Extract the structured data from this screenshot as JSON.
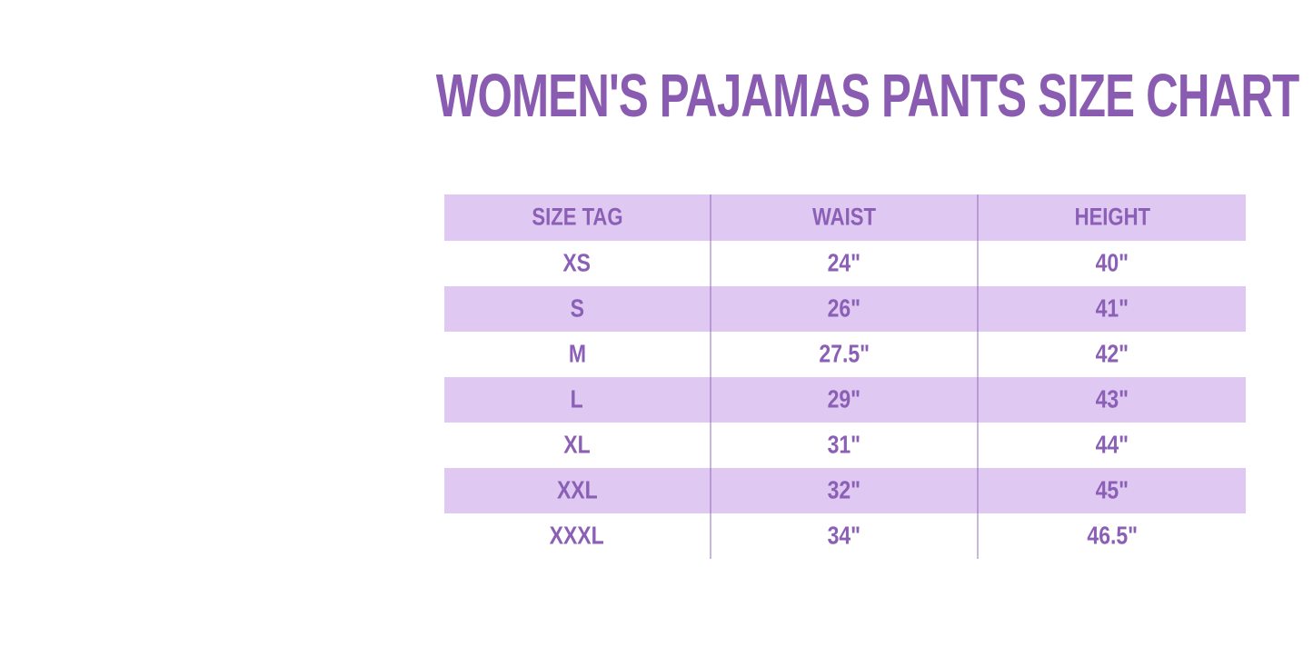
{
  "page": {
    "background": "#ffffff"
  },
  "title": {
    "text": "WOMEN'S PAJAMAS PANTS SIZE CHART",
    "color": "#8a5cb1"
  },
  "table": {
    "headers": [
      "SIZE TAG",
      "WAIST",
      "HEIGHT"
    ],
    "rows": [
      {
        "size": "XS",
        "waist": "24\"",
        "height": "40\""
      },
      {
        "size": "S",
        "waist": "26\"",
        "height": "41\""
      },
      {
        "size": "M",
        "waist": "27.5\"",
        "height": "42\""
      },
      {
        "size": "L",
        "waist": "29\"",
        "height": "43\""
      },
      {
        "size": "XL",
        "waist": "31\"",
        "height": "44\""
      },
      {
        "size": "XXL",
        "waist": "32\"",
        "height": "45\""
      },
      {
        "size": "XXXL",
        "waist": "34\"",
        "height": "46.5\""
      }
    ],
    "colors": {
      "header_bg": "#dfc8f1",
      "stripe_bg": "#dfc8f1",
      "alt_row_bg": "#ffffff",
      "cell_text": "#8a5fb5",
      "divider": "#a983cc"
    }
  },
  "chart_data": {
    "type": "table",
    "title": "WOMEN'S PAJAMAS PANTS SIZE CHART",
    "columns": [
      "SIZE TAG",
      "WAIST",
      "HEIGHT"
    ],
    "rows": [
      [
        "XS",
        "24\"",
        "40\""
      ],
      [
        "S",
        "26\"",
        "41\""
      ],
      [
        "M",
        "27.5\"",
        "42\""
      ],
      [
        "L",
        "29\"",
        "43\""
      ],
      [
        "XL",
        "31\"",
        "44\""
      ],
      [
        "XXL",
        "32\"",
        "45\""
      ],
      [
        "XXXL",
        "34\"",
        "46.5\""
      ]
    ],
    "waist_inches": [
      24,
      26,
      27.5,
      29,
      31,
      32,
      34
    ],
    "height_inches": [
      40,
      41,
      42,
      43,
      44,
      45,
      46.5
    ],
    "layout_hints": {
      "striped_rows": "header and rows S, L, XXL are lavender; others white",
      "column_widths": "equal thirds",
      "grid": "vertical column dividers only, no horizontal borders"
    }
  }
}
